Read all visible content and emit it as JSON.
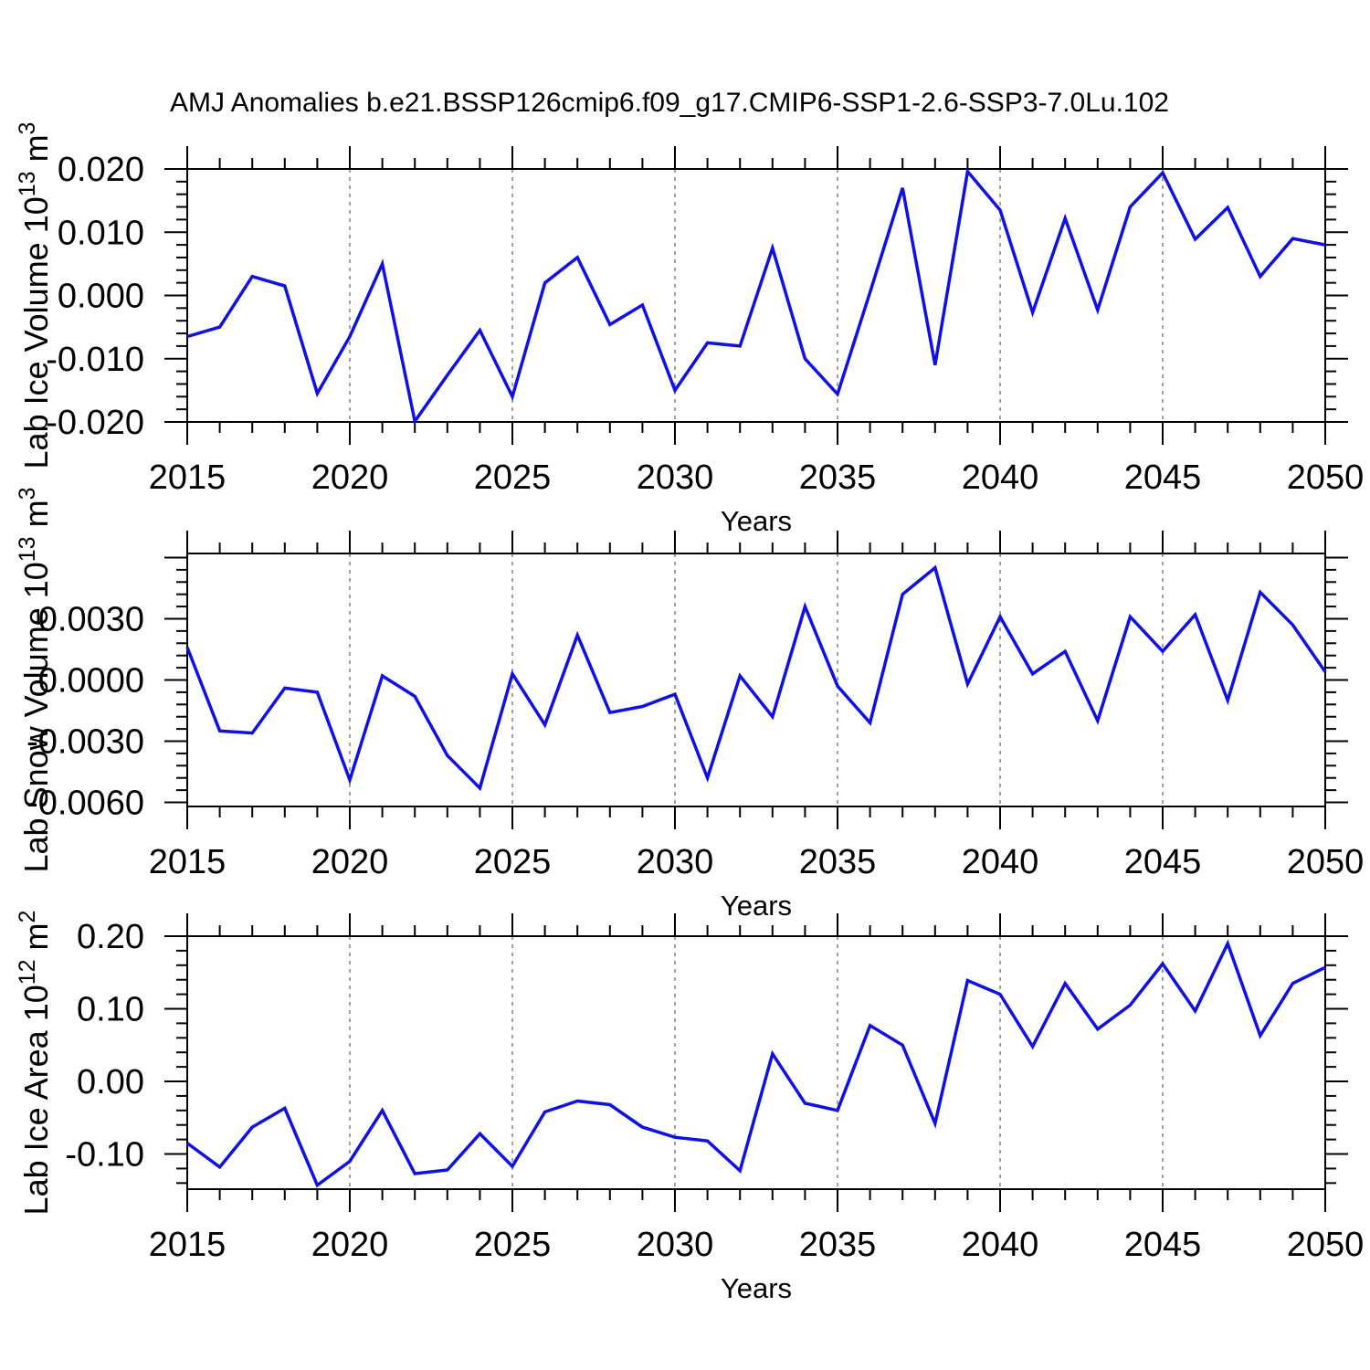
{
  "chart_data": {
    "type": "line",
    "title": "AMJ Anomalies b.e21.BSSP126cmip6.f09_g17.CMIP6-SSP1-2.6-SSP3-7.0Lu.102",
    "x_label": "Years",
    "x_range": [
      2015,
      2050
    ],
    "years": [
      2015,
      2016,
      2017,
      2018,
      2019,
      2020,
      2021,
      2022,
      2023,
      2024,
      2025,
      2026,
      2027,
      2028,
      2029,
      2030,
      2031,
      2032,
      2033,
      2034,
      2035,
      2036,
      2037,
      2038,
      2039,
      2040,
      2041,
      2042,
      2043,
      2044,
      2045,
      2046,
      2047,
      2048,
      2049,
      2050
    ],
    "xticks": [
      2015,
      2020,
      2025,
      2030,
      2035,
      2040,
      2045,
      2050
    ],
    "xtick_labels": [
      "2015",
      "2020",
      "2025",
      "2030",
      "2035",
      "2040",
      "2045",
      "2050"
    ],
    "x_minor_step": 1,
    "grid_years": [
      2020,
      2025,
      2030,
      2035,
      2040,
      2045
    ],
    "line_color": "#0f0fe8",
    "grid_color": "#828282",
    "legend": "none",
    "grid": "vertical-dashed",
    "panels": [
      {
        "name": "lab-ice-volume",
        "ylabel_parts": [
          {
            "t": "Lab Ice Volume 10"
          },
          {
            "t": "13",
            "sup": true
          },
          {
            "t": " m"
          },
          {
            "t": "3",
            "sup": true
          }
        ],
        "ylim": [
          -0.02,
          0.02
        ],
        "ytick_values": [
          -0.02,
          -0.01,
          0.0,
          0.01,
          0.02
        ],
        "ytick_labels": [
          "-0.020",
          "-0.010",
          "0.000",
          "0.010",
          "0.020"
        ],
        "y_minor_step": 0.002,
        "values": [
          -0.0065,
          -0.005,
          0.003,
          0.0015,
          -0.0155,
          -0.0065,
          0.005,
          -0.0199,
          -0.0126,
          -0.0055,
          -0.016,
          0.002,
          0.006,
          -0.0046,
          -0.0015,
          -0.015,
          -0.0075,
          -0.008,
          0.0075,
          -0.01,
          -0.0156,
          0.0005,
          0.017,
          -0.011,
          0.0196,
          0.0135,
          -0.0027,
          0.0122,
          -0.0023,
          0.014,
          0.0194,
          0.0089,
          0.0139,
          0.003,
          0.009,
          0.008
        ]
      },
      {
        "name": "lab-snow-volume",
        "ylabel_parts": [
          {
            "t": "Lab Snow Volume 10"
          },
          {
            "t": "13",
            "sup": true
          },
          {
            "t": " m"
          },
          {
            "t": "3",
            "sup": true
          }
        ],
        "ylim": [
          -0.0062,
          0.0062
        ],
        "ytick_values": [
          -0.006,
          -0.003,
          0.0,
          0.003,
          0.006
        ],
        "ytick_labels": [
          "-0.0060",
          "-0.0030",
          "0.0000",
          "0.0030",
          ""
        ],
        "y_minor_step": 0.0006,
        "values": [
          0.0016,
          -0.0025,
          -0.0026,
          -0.0004,
          -0.0006,
          -0.0049,
          0.0002,
          -0.0008,
          -0.0037,
          -0.0053,
          0.0003,
          -0.0022,
          0.0022,
          -0.0016,
          -0.0013,
          -0.0007,
          -0.0048,
          0.0002,
          -0.0018,
          0.0036,
          -0.0003,
          -0.0021,
          0.0042,
          0.0055,
          -0.0002,
          0.0031,
          0.0003,
          0.0014,
          -0.002,
          0.0031,
          0.0014,
          0.0032,
          -0.001,
          0.0043,
          0.0027,
          0.0004
        ]
      },
      {
        "name": "lab-ice-area",
        "ylabel_parts": [
          {
            "t": "Lab Ice Area 10"
          },
          {
            "t": "12",
            "sup": true
          },
          {
            "t": " m"
          },
          {
            "t": "2",
            "sup": true
          }
        ],
        "ylim": [
          -0.1484,
          0.2
        ],
        "ytick_values": [
          -0.1,
          0.0,
          0.1,
          0.2
        ],
        "ytick_labels": [
          "-0.10",
          "0.00",
          "0.10",
          "0.20"
        ],
        "y_minor_step": 0.02,
        "values": [
          -0.085,
          -0.118,
          -0.063,
          -0.037,
          -0.143,
          -0.11,
          -0.04,
          -0.127,
          -0.122,
          -0.072,
          -0.117,
          -0.042,
          -0.027,
          -0.032,
          -0.063,
          -0.077,
          -0.082,
          -0.123,
          0.038,
          -0.03,
          -0.04,
          0.077,
          0.05,
          -0.058,
          0.139,
          0.12,
          0.048,
          0.135,
          0.072,
          0.105,
          0.162,
          0.097,
          0.19,
          0.063,
          0.135,
          0.157
        ]
      }
    ]
  }
}
